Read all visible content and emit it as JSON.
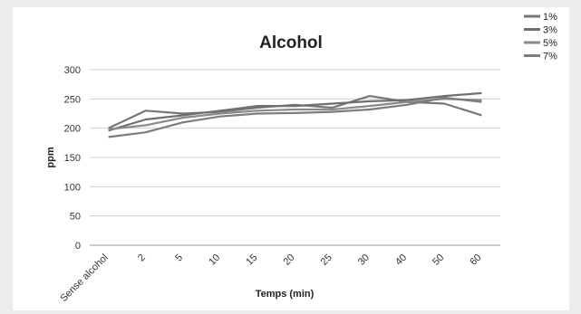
{
  "chart_data": {
    "type": "line",
    "title": "Alcohol",
    "xlabel": "Temps (min)",
    "ylabel": "ppm",
    "categories": [
      "Sense alcohol",
      "2",
      "5",
      "10",
      "15",
      "20",
      "25",
      "30",
      "40",
      "50",
      "60"
    ],
    "ylim": [
      0,
      300
    ],
    "yticks": [
      0,
      50,
      100,
      150,
      200,
      250,
      300
    ],
    "grid": true,
    "legend_position": "top-right",
    "series": [
      {
        "name": "1%",
        "values": [
          200,
          230,
          225,
          228,
          235,
          240,
          235,
          255,
          245,
          242,
          222
        ],
        "color": "#777777"
      },
      {
        "name": "3%",
        "values": [
          196,
          215,
          222,
          230,
          238,
          238,
          242,
          246,
          248,
          255,
          260
        ],
        "color": "#6f6f6f"
      },
      {
        "name": "5%",
        "values": [
          198,
          205,
          218,
          225,
          230,
          232,
          232,
          238,
          245,
          250,
          248
        ],
        "color": "#8a8a8a"
      },
      {
        "name": "7%",
        "values": [
          185,
          193,
          210,
          220,
          225,
          226,
          228,
          232,
          240,
          252,
          245
        ],
        "color": "#7d7d7d"
      }
    ]
  }
}
